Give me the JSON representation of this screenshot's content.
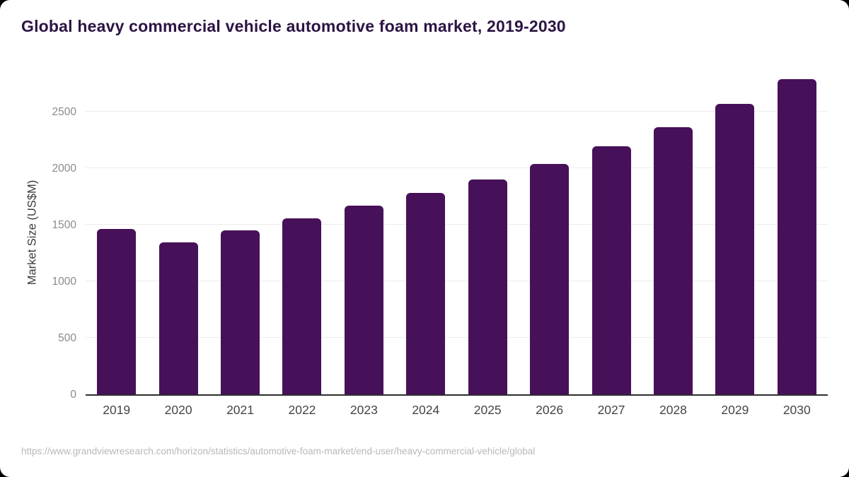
{
  "title": "Global heavy commercial vehicle automotive foam market, 2019-2030",
  "source_url": "https://www.grandviewresearch.com/horizon/statistics/automotive-foam-market/end-user/heavy-commercial-vehicle/global",
  "chart_data": {
    "type": "bar",
    "title": "Global heavy commercial vehicle automotive foam market, 2019-2030",
    "categories": [
      "2019",
      "2020",
      "2021",
      "2022",
      "2023",
      "2024",
      "2025",
      "2026",
      "2027",
      "2028",
      "2029",
      "2030"
    ],
    "values": [
      1460,
      1345,
      1450,
      1555,
      1665,
      1780,
      1900,
      2035,
      2190,
      2360,
      2565,
      2785
    ],
    "xlabel": "",
    "ylabel": "Market Size (US$M)",
    "ylim": [
      0,
      2860
    ],
    "yticks": [
      0,
      500,
      1000,
      1500,
      2000,
      2500
    ],
    "grid": true,
    "legend": "none",
    "bar_color": "#471159",
    "title_color": "#2b1444",
    "axis_line_color": "#2e2e2e",
    "gridline_color": "#ececec",
    "tick_label_color": "#8a8a8a",
    "x_label_color": "#454545",
    "source_color": "#b8b8b8"
  }
}
